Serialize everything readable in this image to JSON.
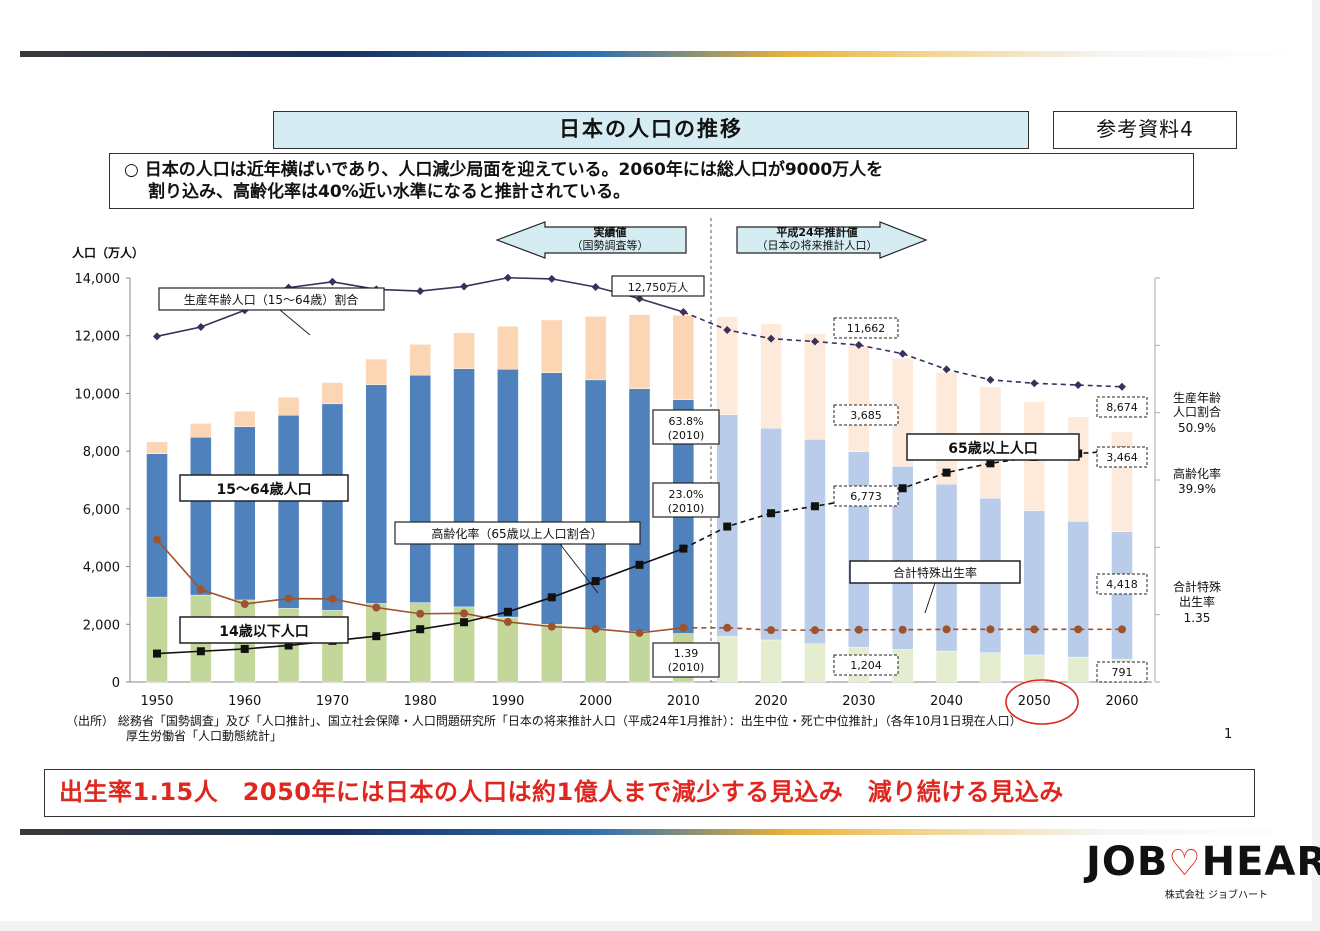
{
  "slide": {
    "title": "日本の人口の推移",
    "reference": "参考資料4",
    "summary_line1": "○ 日本の人口は近年横ばいであり、人口減少局面を迎えている。2060年には総人口が9000万人を",
    "summary_line2": "割り込み、高齢化率は40%近い水準になると推計されている。",
    "source_line1": "（出所） 総務省「国勢調査」及び「人口推計」、国立社会保障・人口問題研究所「日本の将来推計人口（平成24年1月推計）：出生中位・死亡中位推計」（各年10月1日現在人口）",
    "source_line2": "厚生労働省「人口動態統計」",
    "page_number": "1",
    "conclusion": "出生率1.15人　2050年には日本の人口は約1億人まで減少する見込み　減り続ける見込み",
    "logo_text_left": "JOB",
    "logo_heart": "♡",
    "logo_text_right": "HEART",
    "logo_sub": "株式会社 ジョブハート"
  },
  "colors": {
    "young_actual": "#c4d79b",
    "working_actual": "#4f81bd",
    "elderly_actual": "#fcd5b5",
    "young_proj": "#e4edcf",
    "working_proj": "#b9cdea",
    "elderly_proj": "#fdeada",
    "line_dark": "#3b2f5c",
    "line_brown": "#a0522d",
    "line_black": "#111111",
    "accent_red": "#e0271f"
  },
  "chart_data": {
    "type": "bar",
    "ylabel": "人口（万人）",
    "ylim": [
      0,
      14000
    ],
    "yticks": [
      "0",
      "2,000",
      "4,000",
      "6,000",
      "8,000",
      "10,000",
      "12,000",
      "14,000"
    ],
    "xticks": [
      "1950",
      "1960",
      "1970",
      "1980",
      "1990",
      "2000",
      "2010",
      "2020",
      "2030",
      "2040",
      "2050",
      "2060"
    ],
    "x": [
      1950,
      1955,
      1960,
      1965,
      1970,
      1975,
      1980,
      1985,
      1990,
      1995,
      2000,
      2005,
      2010,
      2015,
      2020,
      2025,
      2030,
      2035,
      2040,
      2045,
      2050,
      2055,
      2060
    ],
    "projection_start": 2015,
    "series": [
      {
        "name": "14歳以下人口",
        "values": [
          2943,
          3012,
          2843,
          2553,
          2482,
          2722,
          2751,
          2603,
          2249,
          2001,
          1847,
          1752,
          1680,
          1583,
          1457,
          1324,
          1204,
          1129,
          1073,
          1012,
          939,
          861,
          791
        ]
      },
      {
        "name": "15〜64歳人口",
        "values": [
          4966,
          5473,
          6000,
          6693,
          7157,
          7581,
          7883,
          8251,
          8590,
          8717,
          8622,
          8409,
          8103,
          7682,
          7341,
          7085,
          6773,
          6343,
          5787,
          5353,
          5001,
          4706,
          4418
        ]
      },
      {
        "name": "65歳以上人口",
        "values": [
          411,
          475,
          540,
          624,
          739,
          887,
          1065,
          1247,
          1489,
          1826,
          2201,
          2567,
          2925,
          3395,
          3612,
          3657,
          3685,
          3741,
          3868,
          3856,
          3768,
          3626,
          3464
        ]
      }
    ],
    "line_series": [
      {
        "name": "生産年齢人口（15〜64歳）割合",
        "unit": "%",
        "values": [
          59.6,
          61.2,
          64.1,
          68.0,
          69.0,
          67.7,
          67.4,
          68.2,
          69.7,
          69.5,
          68.1,
          66.1,
          63.8,
          60.7,
          59.2,
          58.7,
          58.1,
          56.6,
          53.9,
          52.1,
          51.5,
          51.2,
          50.9
        ]
      },
      {
        "name": "高齢化率（65歳以上人口割合）",
        "unit": "%",
        "values": [
          4.9,
          5.3,
          5.7,
          6.3,
          7.1,
          7.9,
          9.1,
          10.3,
          12.1,
          14.6,
          17.4,
          20.2,
          23.0,
          26.8,
          29.1,
          30.3,
          31.6,
          33.4,
          36.1,
          37.7,
          38.8,
          39.4,
          39.9
        ]
      },
      {
        "name": "合計特殊出生率",
        "values": [
          3.65,
          2.37,
          2.0,
          2.14,
          2.13,
          1.91,
          1.75,
          1.76,
          1.54,
          1.42,
          1.36,
          1.26,
          1.39,
          1.39,
          1.33,
          1.33,
          1.34,
          1.34,
          1.35,
          1.35,
          1.35,
          1.35,
          1.35
        ]
      }
    ],
    "annotations": {
      "actual_label_1": "実績値",
      "actual_label_2": "（国勢調査等）",
      "proj_label_1": "平成24年推計値",
      "proj_label_2": "（日本の将来推計人口）",
      "peak_total": "12,750万人",
      "total_2030": "11,662",
      "total_2060": "8,674",
      "elderly_2030": "3,685",
      "working_2030": "6,773",
      "young_2030": "1,204",
      "elderly_2060": "3,464",
      "working_2060": "4,418",
      "young_2060": "791",
      "working_ratio_2010_1": "63.8%",
      "working_ratio_2010_2": "(2010)",
      "aging_rate_2010_1": "23.0%",
      "aging_rate_2010_2": "(2010)",
      "tfr_2010_1": "1.39",
      "tfr_2010_2": "(2010)",
      "label_working_ratio": "生産年齢人口（15〜64歳）割合",
      "label_working_pop": "15〜64歳人口",
      "label_young_pop": "14歳以下人口",
      "label_aging_rate": "高齢化率（65歳以上人口割合）",
      "label_elderly_pop": "65歳以上人口",
      "label_tfr": "合計特殊出生率",
      "right_working_1": "生産年齢",
      "right_working_2": "人口割合",
      "right_working_3": "50.9%",
      "right_aging_1": "高齢化率",
      "right_aging_2": "39.9%",
      "right_tfr_1": "合計特殊",
      "right_tfr_2": "出生率",
      "right_tfr_3": "1.35"
    }
  }
}
